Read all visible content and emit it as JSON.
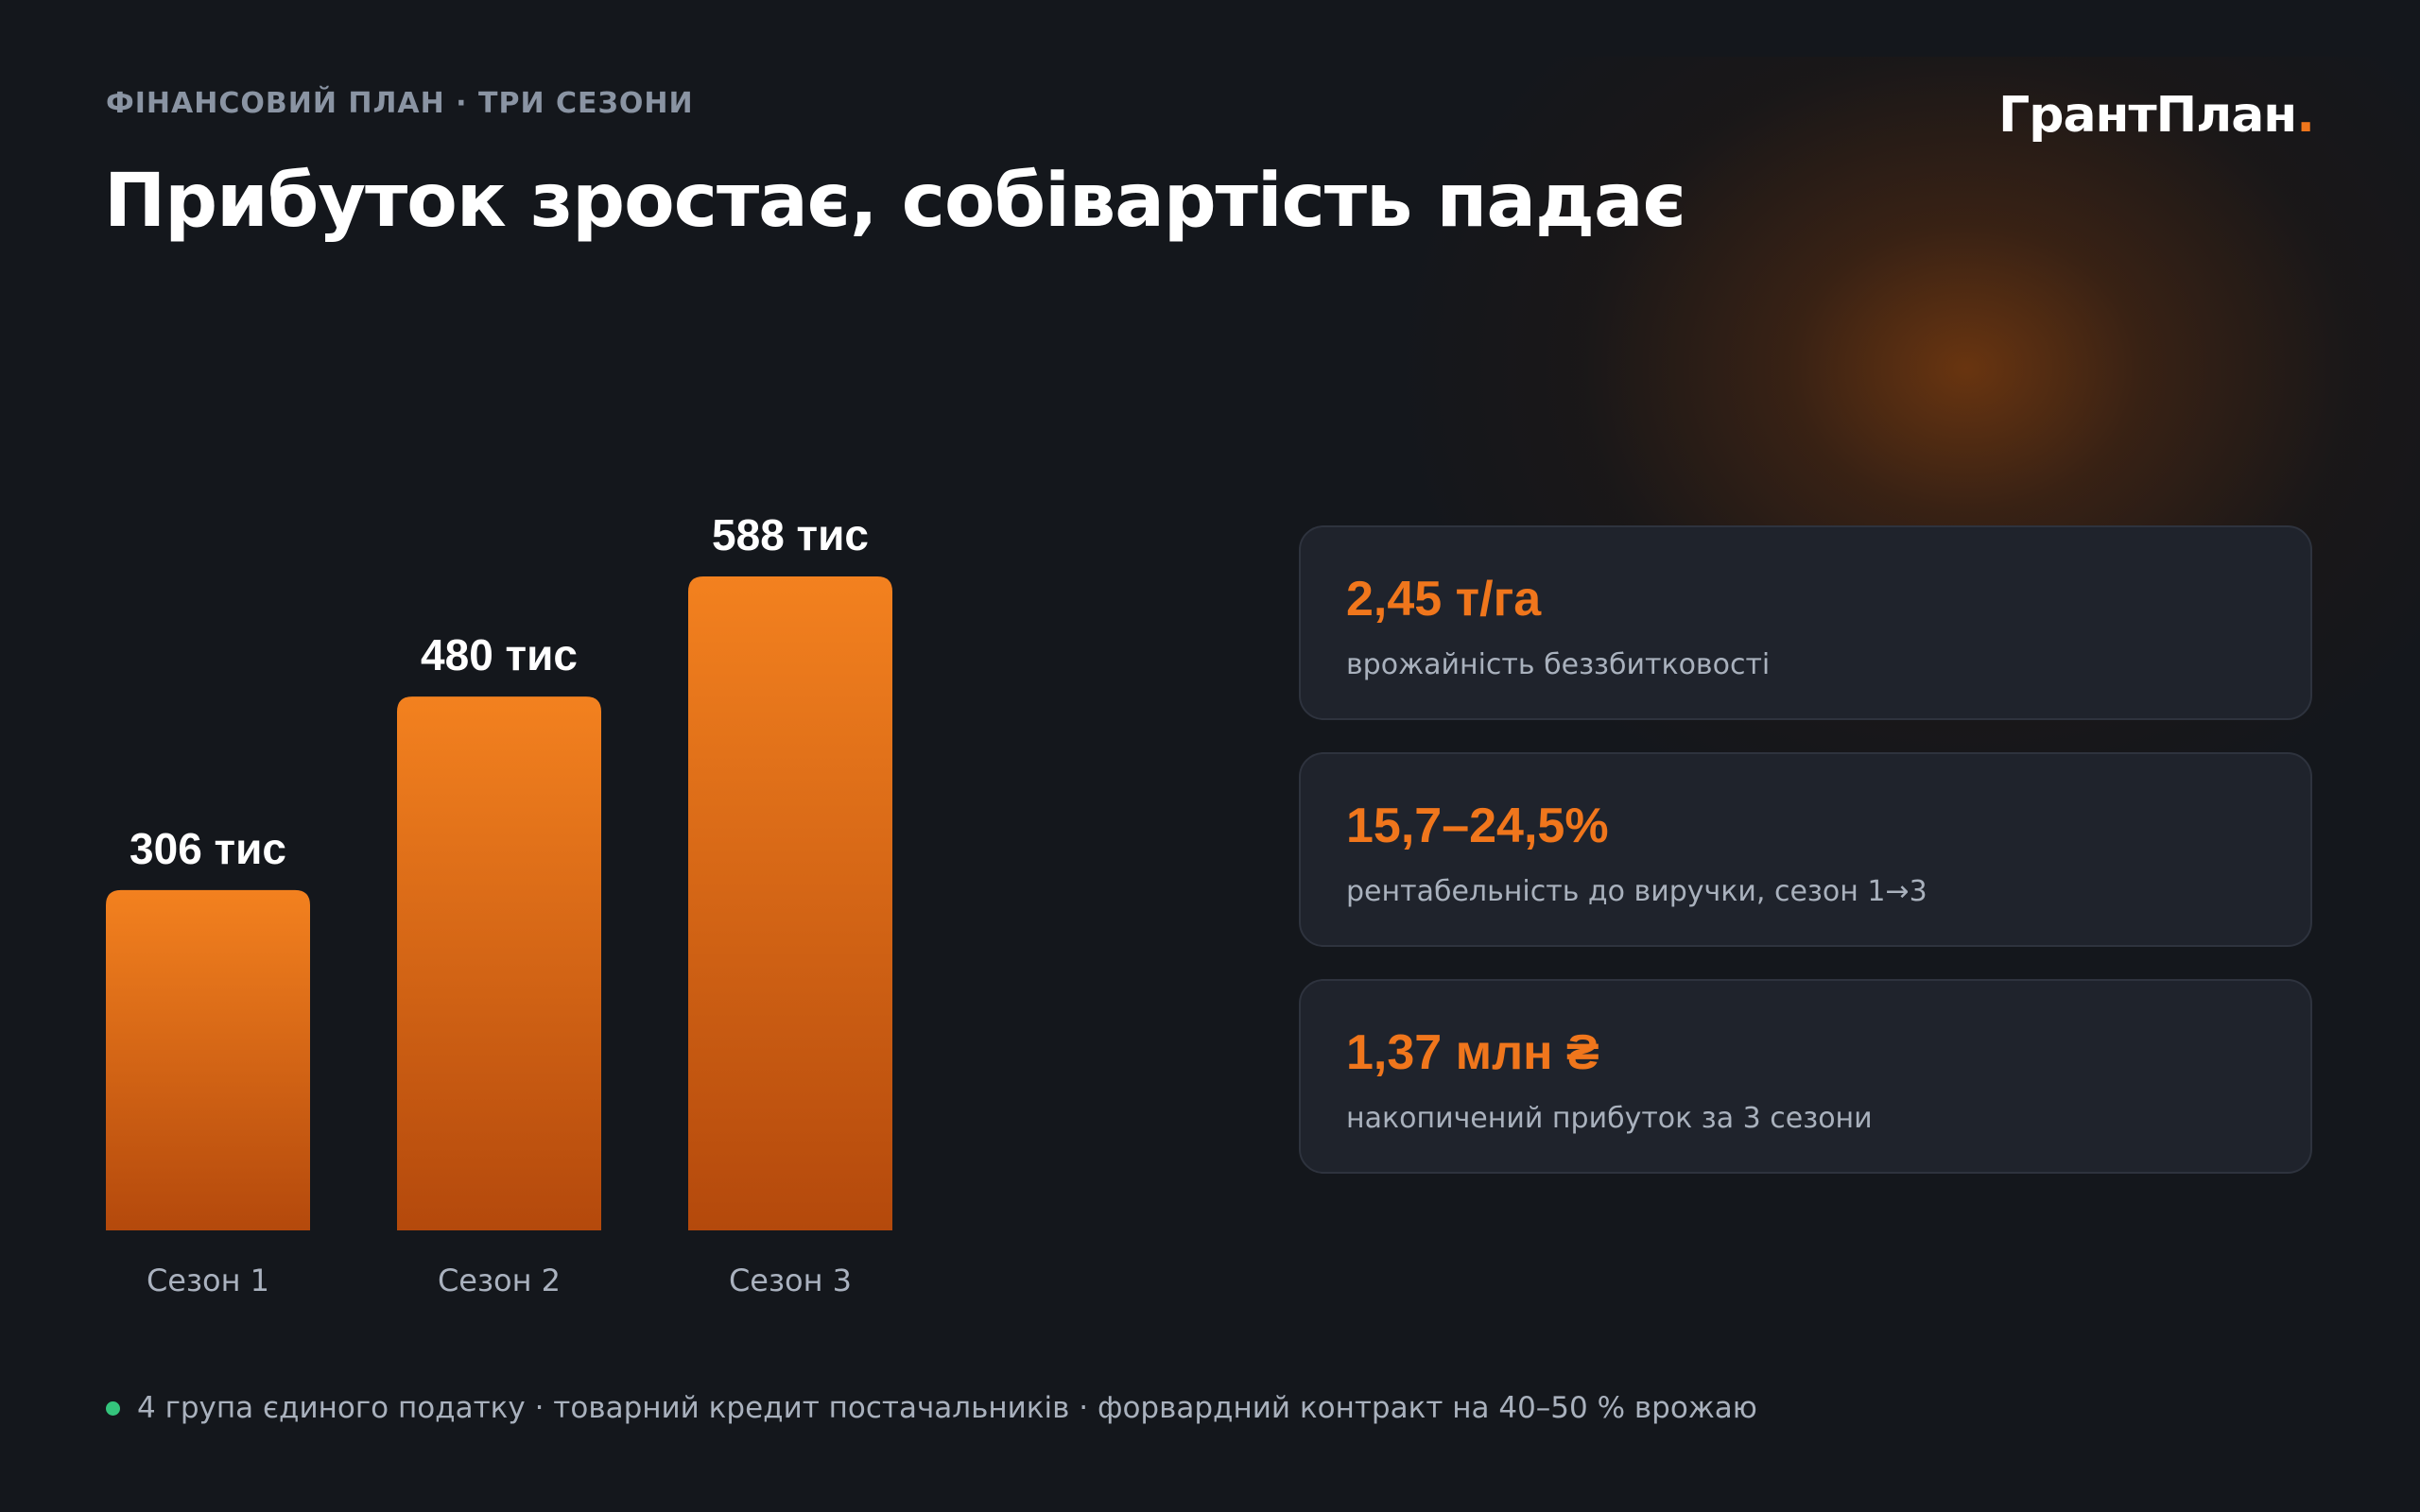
{
  "header": {
    "eyebrow": "ФІНАНСОВИЙ ПЛАН · ТРИ СЕЗОНИ",
    "title": "Прибуток зростає, собівартість падає",
    "logo_text": "ГрантПлан",
    "logo_dot": "."
  },
  "chart_data": {
    "type": "bar",
    "categories": [
      "Сезон 1",
      "Сезон 2",
      "Сезон 3"
    ],
    "values": [
      306,
      480,
      588
    ],
    "value_labels": [
      "306 тис",
      "480 тис",
      "588 тис"
    ],
    "ylim": [
      0,
      588
    ],
    "grid": false,
    "bar_color_top": "#f3811f",
    "bar_color_bottom": "#b4490c"
  },
  "cards": [
    {
      "value": "2,45 т/га",
      "label": "врожайність беззбитковості"
    },
    {
      "value": "15,7–24,5%",
      "label": "рентабельність до виручки, сезон 1→3"
    },
    {
      "value": "1,37 млн ₴",
      "label": "накопичений прибуток за 3 сезони"
    }
  ],
  "footer": {
    "text": "4 група єдиного податку · товарний кредит постачальників · форвардний контракт на 40–50 % врожаю",
    "dot_color": "#34c47c"
  },
  "colors": {
    "accent": "#f0761c",
    "background": "#14171c",
    "card_background": "#1f232c"
  }
}
